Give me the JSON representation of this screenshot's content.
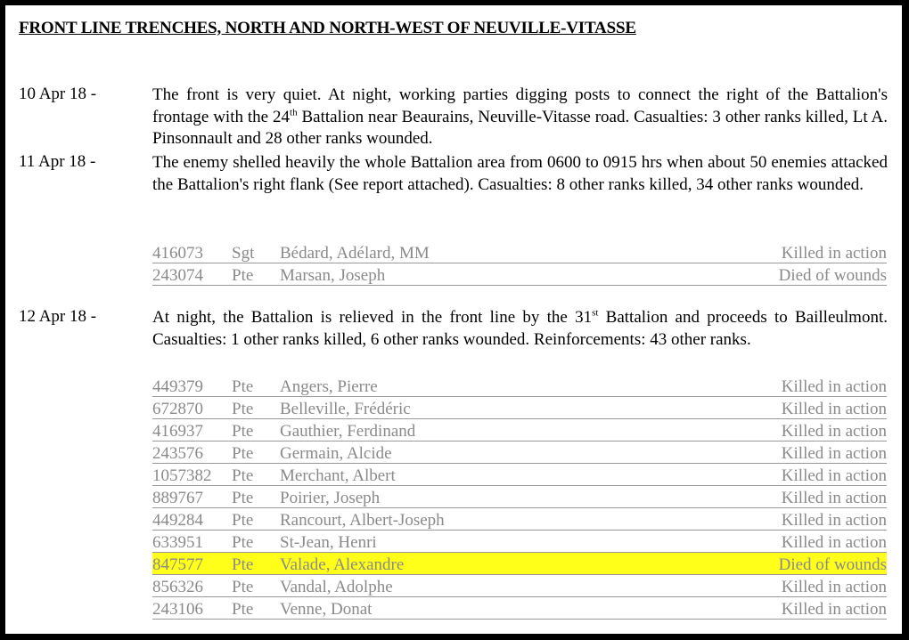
{
  "title": "FRONT LINE TRENCHES, NORTH AND NORTH-WEST OF NEUVILLE-VITASSE",
  "highlight_color": "#ffff1a",
  "entries": [
    {
      "date": "10 Apr 18 -",
      "text_before": "The front is very quiet. At night, working parties digging posts to connect the right of the Battalion's frontage with the 24",
      "sup": "th",
      "text_after": " Battalion near Beaurains, Neuville-Vitasse road. Casualties: 3 other ranks killed, Lt A. Pinsonnault and 28 other ranks wounded."
    },
    {
      "date": "11 Apr 18 -",
      "text_before": "The enemy shelled heavily the whole Battalion area from 0600 to 0915 hrs when about 50 enemies attacked the Battalion's right flank (See report attached). Casualties: 8 other ranks killed, 34 other ranks wounded.",
      "sup": "",
      "text_after": "",
      "casualties": [
        {
          "number": "416073",
          "rank": "Sgt",
          "name": "Bédard, Adélard, MM",
          "status": "Killed in action"
        },
        {
          "number": "243074",
          "rank": "Pte",
          "name": "Marsan, Joseph",
          "status": "Died of wounds"
        }
      ]
    },
    {
      "date": "12 Apr 18 -",
      "text_before": "At night, the Battalion is relieved in the front line by the 31",
      "sup": "st",
      "text_after": " Battalion and proceeds to Bailleulmont. Casualties: 1 other ranks killed, 6 other ranks wounded. Reinforcements: 43 other ranks.",
      "casualties": [
        {
          "number": "449379",
          "rank": "Pte",
          "name": "Angers, Pierre",
          "status": "Killed in action"
        },
        {
          "number": "672870",
          "rank": "Pte",
          "name": "Belleville, Frédéric",
          "status": "Killed in action"
        },
        {
          "number": "416937",
          "rank": "Pte",
          "name": "Gauthier, Ferdinand",
          "status": "Killed in action"
        },
        {
          "number": "243576",
          "rank": "Pte",
          "name": "Germain, Alcide",
          "status": "Killed in action"
        },
        {
          "number": "1057382",
          "rank": "Pte",
          "name": "Merchant, Albert",
          "status": "Killed in action"
        },
        {
          "number": "889767",
          "rank": "Pte",
          "name": "Poirier, Joseph",
          "status": "Killed in action"
        },
        {
          "number": "449284",
          "rank": "Pte",
          "name": "Rancourt, Albert-Joseph",
          "status": "Killed in action"
        },
        {
          "number": "633951",
          "rank": "Pte",
          "name": "St-Jean, Henri",
          "status": "Killed in action"
        },
        {
          "number": "847577",
          "rank": "Pte",
          "name": "Valade, Alexandre",
          "status": "Died of wounds",
          "highlighted": true
        },
        {
          "number": "856326",
          "rank": "Pte",
          "name": "Vandal, Adolphe",
          "status": "Killed in action"
        },
        {
          "number": "243106",
          "rank": "Pte",
          "name": "Venne, Donat",
          "status": "Killed in action"
        }
      ]
    }
  ]
}
